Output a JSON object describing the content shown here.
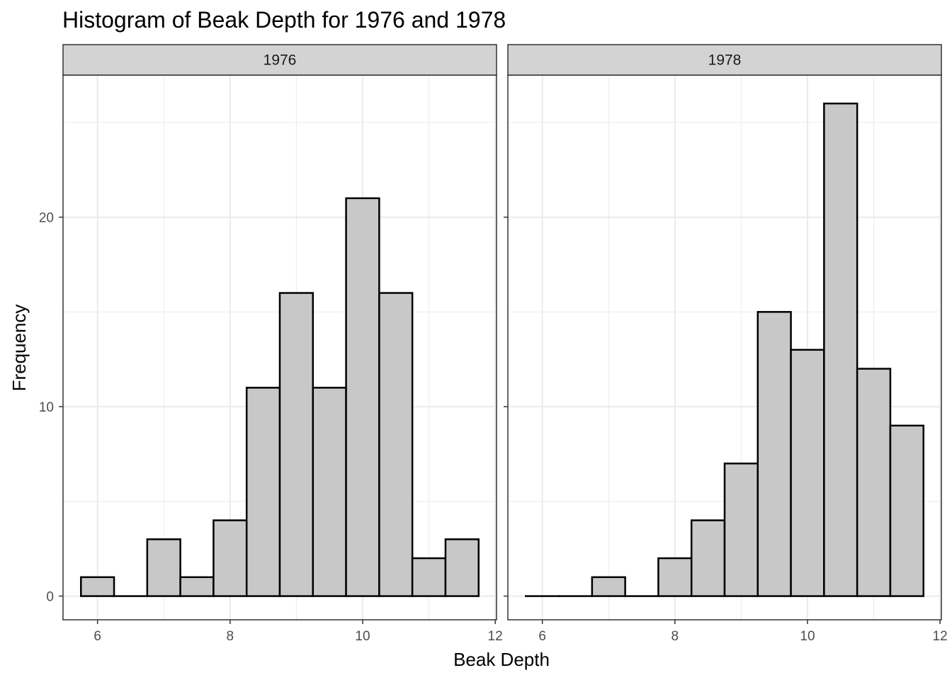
{
  "chart_data": {
    "type": "bar",
    "title": "Histogram of Beak Depth for 1976 and 1978",
    "xlabel": "Beak Depth",
    "ylabel": "Frequency",
    "xlim": [
      5.48,
      12.02
    ],
    "ylim": [
      -1.25,
      27.5
    ],
    "x_ticks": [
      6,
      8,
      10,
      12
    ],
    "y_ticks": [
      0,
      10,
      20
    ],
    "grid": true,
    "bin_width": 0.5,
    "bin_starts": [
      5.75,
      6.25,
      6.75,
      7.25,
      7.75,
      8.25,
      8.75,
      9.25,
      9.75,
      10.25,
      10.75,
      11.25
    ],
    "panels": [
      {
        "strip": "1976",
        "values": [
          1,
          0,
          3,
          1,
          4,
          11,
          16,
          11,
          21,
          16,
          2,
          3
        ]
      },
      {
        "strip": "1978",
        "values": [
          0,
          0,
          1,
          0,
          2,
          4,
          7,
          15,
          13,
          26,
          12,
          9
        ]
      }
    ],
    "bar_fill": "#c8c8c8",
    "bar_stroke": "#000000",
    "strip_fill": "#d3d3d3",
    "grid_color": "#ebebeb"
  }
}
